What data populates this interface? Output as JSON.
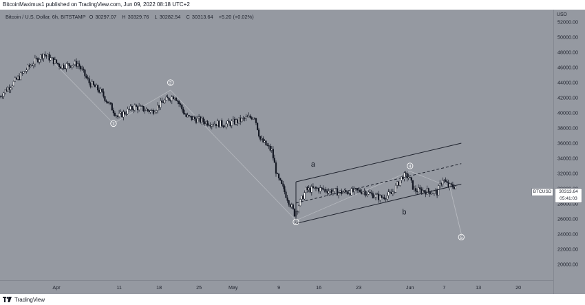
{
  "publication": "BitcoinMaximus1 published on TradingView.com, Jun 09, 2022 08:18 UTC+2",
  "footer": {
    "brand": "TradingView",
    "logo_icon": "tradingview-logo-icon"
  },
  "legend": {
    "symbol": "Bitcoin / U.S. Dollar, 6h, BITSTAMP",
    "o_label": "O",
    "o_value": "30297.07",
    "h_label": "H",
    "h_value": "30329.76",
    "l_label": "L",
    "l_value": "30282.54",
    "c_label": "C",
    "c_value": "30313.64",
    "change": "+5.20 (+0.02%)"
  },
  "price_axis": {
    "currency": "USD",
    "ticks": [
      "52000.00",
      "50000.00",
      "48000.00",
      "46000.00",
      "44000.00",
      "42000.00",
      "40000.00",
      "38000.00",
      "36000.00",
      "34000.00",
      "32000.00",
      "30000.00",
      "28000.00",
      "26000.00",
      "24000.00",
      "22000.00",
      "20000.00"
    ]
  },
  "time_axis": {
    "ticks": [
      "Apr",
      "11",
      "18",
      "25",
      "May",
      "9",
      "16",
      "23",
      "Jun",
      "7",
      "13",
      "20"
    ]
  },
  "price_tag": {
    "ticker": "BTCUSD",
    "price": "30313.64",
    "countdown": "05:41:03"
  },
  "colors": {
    "background": "#9599a1",
    "candle": "#131722",
    "line": "#1e222d",
    "wave_path": "#b6b9bf",
    "label_fill": "#ffffff"
  },
  "chart_data": {
    "type": "candlestick",
    "symbol": "BTCUSD",
    "interval": "6h",
    "exchange": "BITSTAMP",
    "ylim": [
      19000,
      53500
    ],
    "price_path": [
      [
        "2022-03-21",
        42000
      ],
      [
        "2022-03-24",
        44200
      ],
      [
        "2022-03-27",
        46500
      ],
      [
        "2022-03-29",
        47800
      ],
      [
        "2022-04-01",
        46200
      ],
      [
        "2022-04-04",
        46500
      ],
      [
        "2022-04-06",
        44000
      ],
      [
        "2022-04-08",
        42800
      ],
      [
        "2022-04-11",
        39500
      ],
      [
        "2022-04-14",
        40800
      ],
      [
        "2022-04-17",
        40200
      ],
      [
        "2022-04-19",
        41500
      ],
      [
        "2022-04-21",
        42300
      ],
      [
        "2022-04-23",
        39500
      ],
      [
        "2022-04-27",
        38700
      ],
      [
        "2022-04-30",
        38500
      ],
      [
        "2022-05-02",
        38900
      ],
      [
        "2022-05-05",
        39600
      ],
      [
        "2022-05-06",
        36500
      ],
      [
        "2022-05-08",
        35000
      ],
      [
        "2022-05-09",
        31500
      ],
      [
        "2022-05-10",
        30000
      ],
      [
        "2022-05-12",
        26700
      ],
      [
        "2022-05-14",
        29800
      ],
      [
        "2022-05-16",
        30000
      ],
      [
        "2022-05-20",
        29500
      ],
      [
        "2022-05-24",
        29700
      ],
      [
        "2022-05-27",
        28800
      ],
      [
        "2022-05-29",
        29300
      ],
      [
        "2022-05-31",
        31700
      ],
      [
        "2022-06-01",
        31600
      ],
      [
        "2022-06-02",
        29800
      ],
      [
        "2022-06-04",
        29700
      ],
      [
        "2022-06-06",
        29500
      ],
      [
        "2022-06-07",
        31300
      ],
      [
        "2022-06-08",
        30300
      ],
      [
        "2022-06-09",
        30313.64
      ]
    ],
    "wave_labels": [
      {
        "label": "1",
        "date": "2022-04-10",
        "price": 38600
      },
      {
        "label": "2",
        "date": "2022-04-20",
        "price": 44000
      },
      {
        "label": "3",
        "date": "2022-05-12",
        "price": 25600
      },
      {
        "label": "4",
        "date": "2022-06-01",
        "price": 33000
      },
      {
        "label": "5",
        "date": "2022-06-10",
        "price": 23600
      },
      {
        "label": "a",
        "date": "2022-05-15",
        "price": 32900
      },
      {
        "label": "b",
        "date": "2022-05-31",
        "price": 26600
      }
    ],
    "channel": {
      "upper": [
        [
          "2022-05-12",
          30900
        ],
        [
          "2022-06-10",
          36000
        ]
      ],
      "middle": [
        [
          "2022-05-12",
          28100
        ],
        [
          "2022-06-10",
          33300
        ]
      ],
      "lower": [
        [
          "2022-05-12",
          25400
        ],
        [
          "2022-06-10",
          30600
        ]
      ]
    },
    "projection": [
      [
        "2022-06-08",
        30200
      ],
      [
        "2022-06-10",
        24000
      ]
    ]
  }
}
